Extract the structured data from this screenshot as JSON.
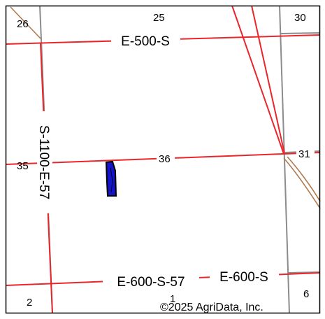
{
  "map": {
    "roads": {
      "e500s": "E-500-S",
      "e600s57": "E-600-S-57",
      "e600s": "E-600-S",
      "s1100e57": "S-1100-E-57"
    },
    "sections": {
      "s26": "26",
      "s25": "25",
      "s30": "30",
      "s35": "35",
      "s36": "36",
      "s31": "31",
      "s2": "2",
      "s1": "1",
      "s6": "6"
    },
    "copyright": "©2025 AgriData, Inc.",
    "colors": {
      "road": "#e8262b",
      "section_line": "#8c8c8c",
      "rail": "#b07a50",
      "parcel_fill": "#1414c8",
      "parcel_stroke": "#000000",
      "frame": "#000000"
    }
  }
}
